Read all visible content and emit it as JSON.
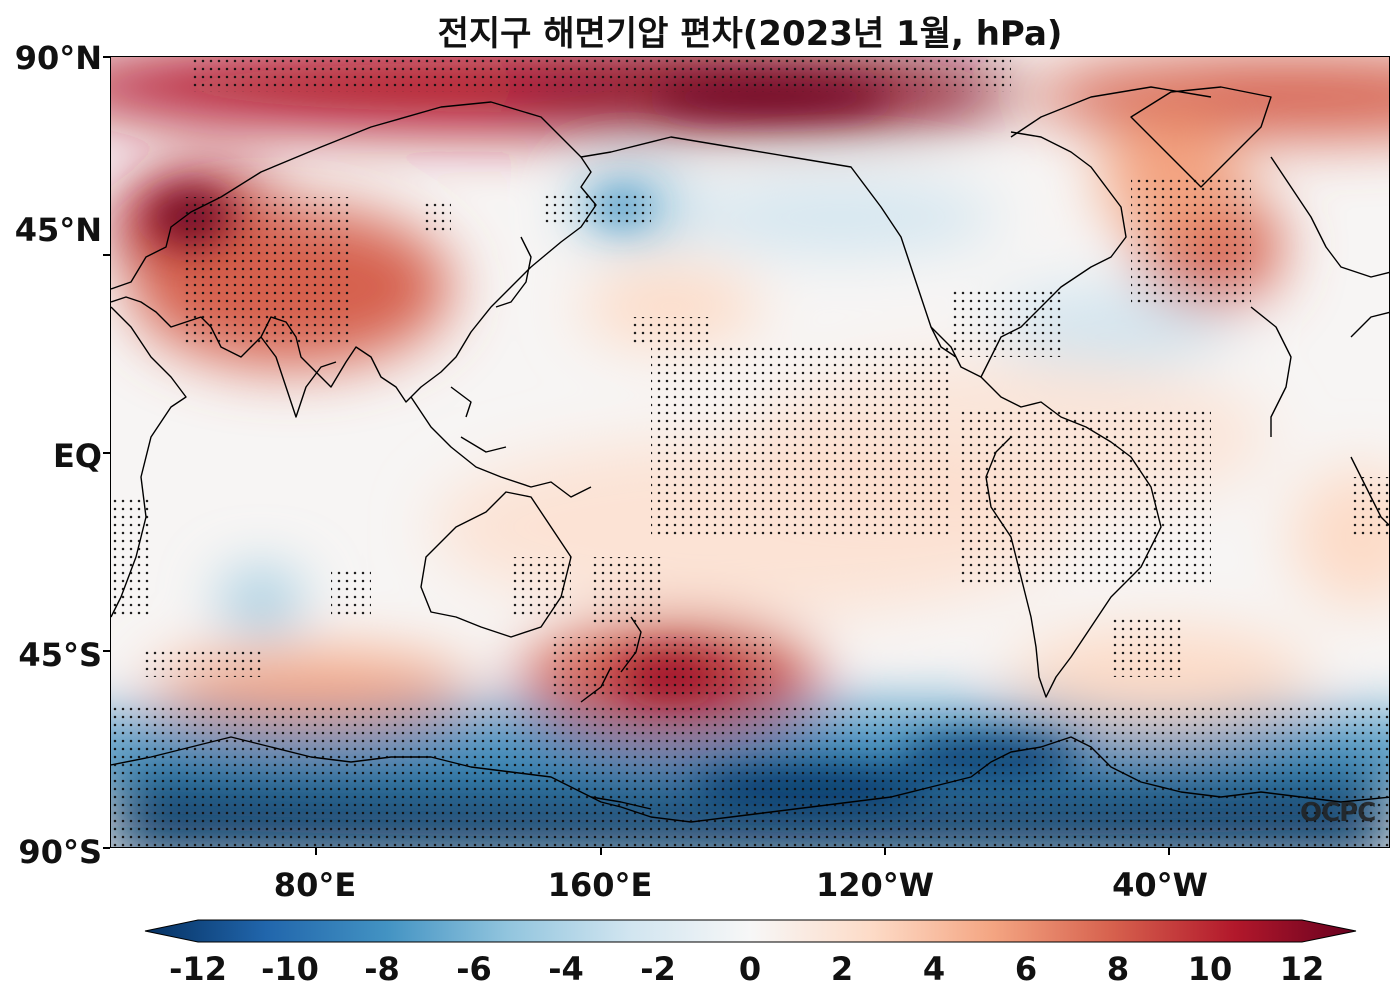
{
  "title": "전지구 해면기압 편차(2023년 1월, hPa)",
  "watermark": "OCPC",
  "lat_ticks": [
    {
      "label": "90°N",
      "lat": 90
    },
    {
      "label": "45°N",
      "lat": 45
    },
    {
      "label": "EQ",
      "lat": 0
    },
    {
      "label": "45°S",
      "lat": -45
    },
    {
      "label": "90°S",
      "lat": -90
    }
  ],
  "lon_ticks": [
    {
      "label": "80°E",
      "lon": 80
    },
    {
      "label": "160°E",
      "lon": 160
    },
    {
      "label": "120°W",
      "lon": 240
    },
    {
      "label": "40°W",
      "lon": 320
    }
  ],
  "colorbar": {
    "min": -12,
    "max": 12,
    "ticks": [
      "-12",
      "-10",
      "-8",
      "-6",
      "-4",
      "-2",
      "0",
      "2",
      "4",
      "6",
      "8",
      "10",
      "12"
    ],
    "colors": [
      "#053061",
      "#2166ac",
      "#4393c3",
      "#92c5de",
      "#d1e5f0",
      "#f7f7f7",
      "#fddbc7",
      "#f4a582",
      "#d6604d",
      "#b2182b",
      "#67001f"
    ]
  },
  "map": {
    "projection": "PlateCarree centered on 180",
    "lon_range": [
      26,
      386
    ],
    "lat_range": [
      -90,
      90
    ],
    "background_color": "#f7f5f4",
    "coastline_color": "#000000",
    "stipple_color": "#111111"
  }
}
